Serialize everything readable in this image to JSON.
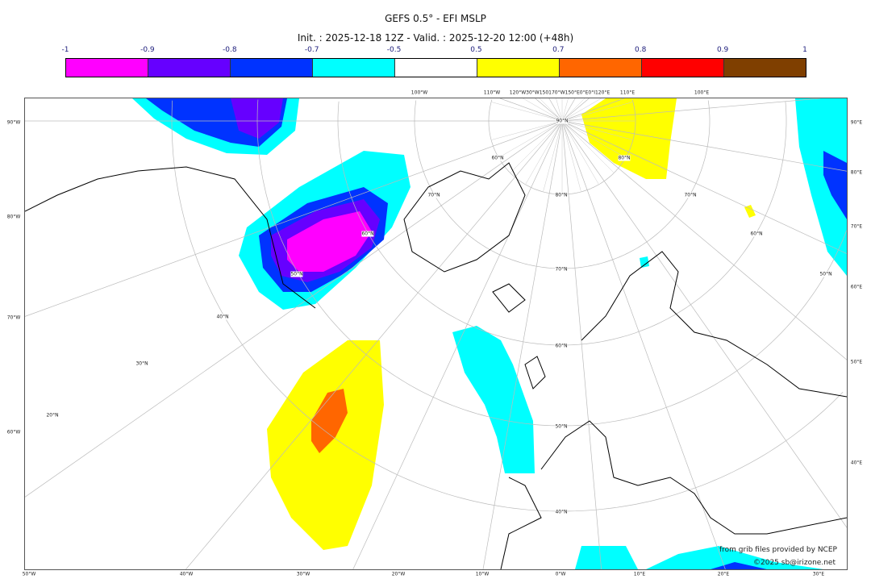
{
  "title": "GEFS 0.5° - EFI MSLP",
  "subtitle": "Init. : 2025-12-18 12Z - Valid. : 2025-12-20 12:00 (+48h)",
  "colorbar": {
    "ticks": [
      "-1",
      "-0.9",
      "-0.8",
      "-0.7",
      "-0.5",
      "0.5",
      "0.7",
      "0.8",
      "0.9",
      "1"
    ],
    "colors": [
      "#ff00ff",
      "#6600ff",
      "#0033ff",
      "#00ffff",
      "#ffffff",
      "#ffff00",
      "#ff6600",
      "#ff0000",
      "#7f3f00"
    ]
  },
  "axes": {
    "left": [
      "90°W",
      "80°W",
      "70°W",
      "60°W"
    ],
    "bottom": [
      "50°W",
      "40°W",
      "30°W",
      "20°W",
      "10°W",
      "0°W",
      "10°E",
      "20°E",
      "30°E"
    ],
    "right": [
      "90°E",
      "80°E",
      "70°E",
      "60°E",
      "50°E",
      "40°E"
    ],
    "top": [
      "100°W",
      "110°W",
      "120°W30°W150170°W150°E0°E0°I120°E",
      "110°E",
      "100°E"
    ],
    "grid_labels": [
      "90°N",
      "80°N",
      "70°N",
      "60°N",
      "50°N",
      "40°N",
      "40°N",
      "30°N",
      "20°N",
      "70°N",
      "60°N",
      "80°N",
      "70°N",
      "60°N",
      "50°N",
      "60°N",
      "50°N"
    ]
  },
  "credits": {
    "source": "from grib files provided by NCEP",
    "copyright": "©2025 sb@irizone.net"
  }
}
